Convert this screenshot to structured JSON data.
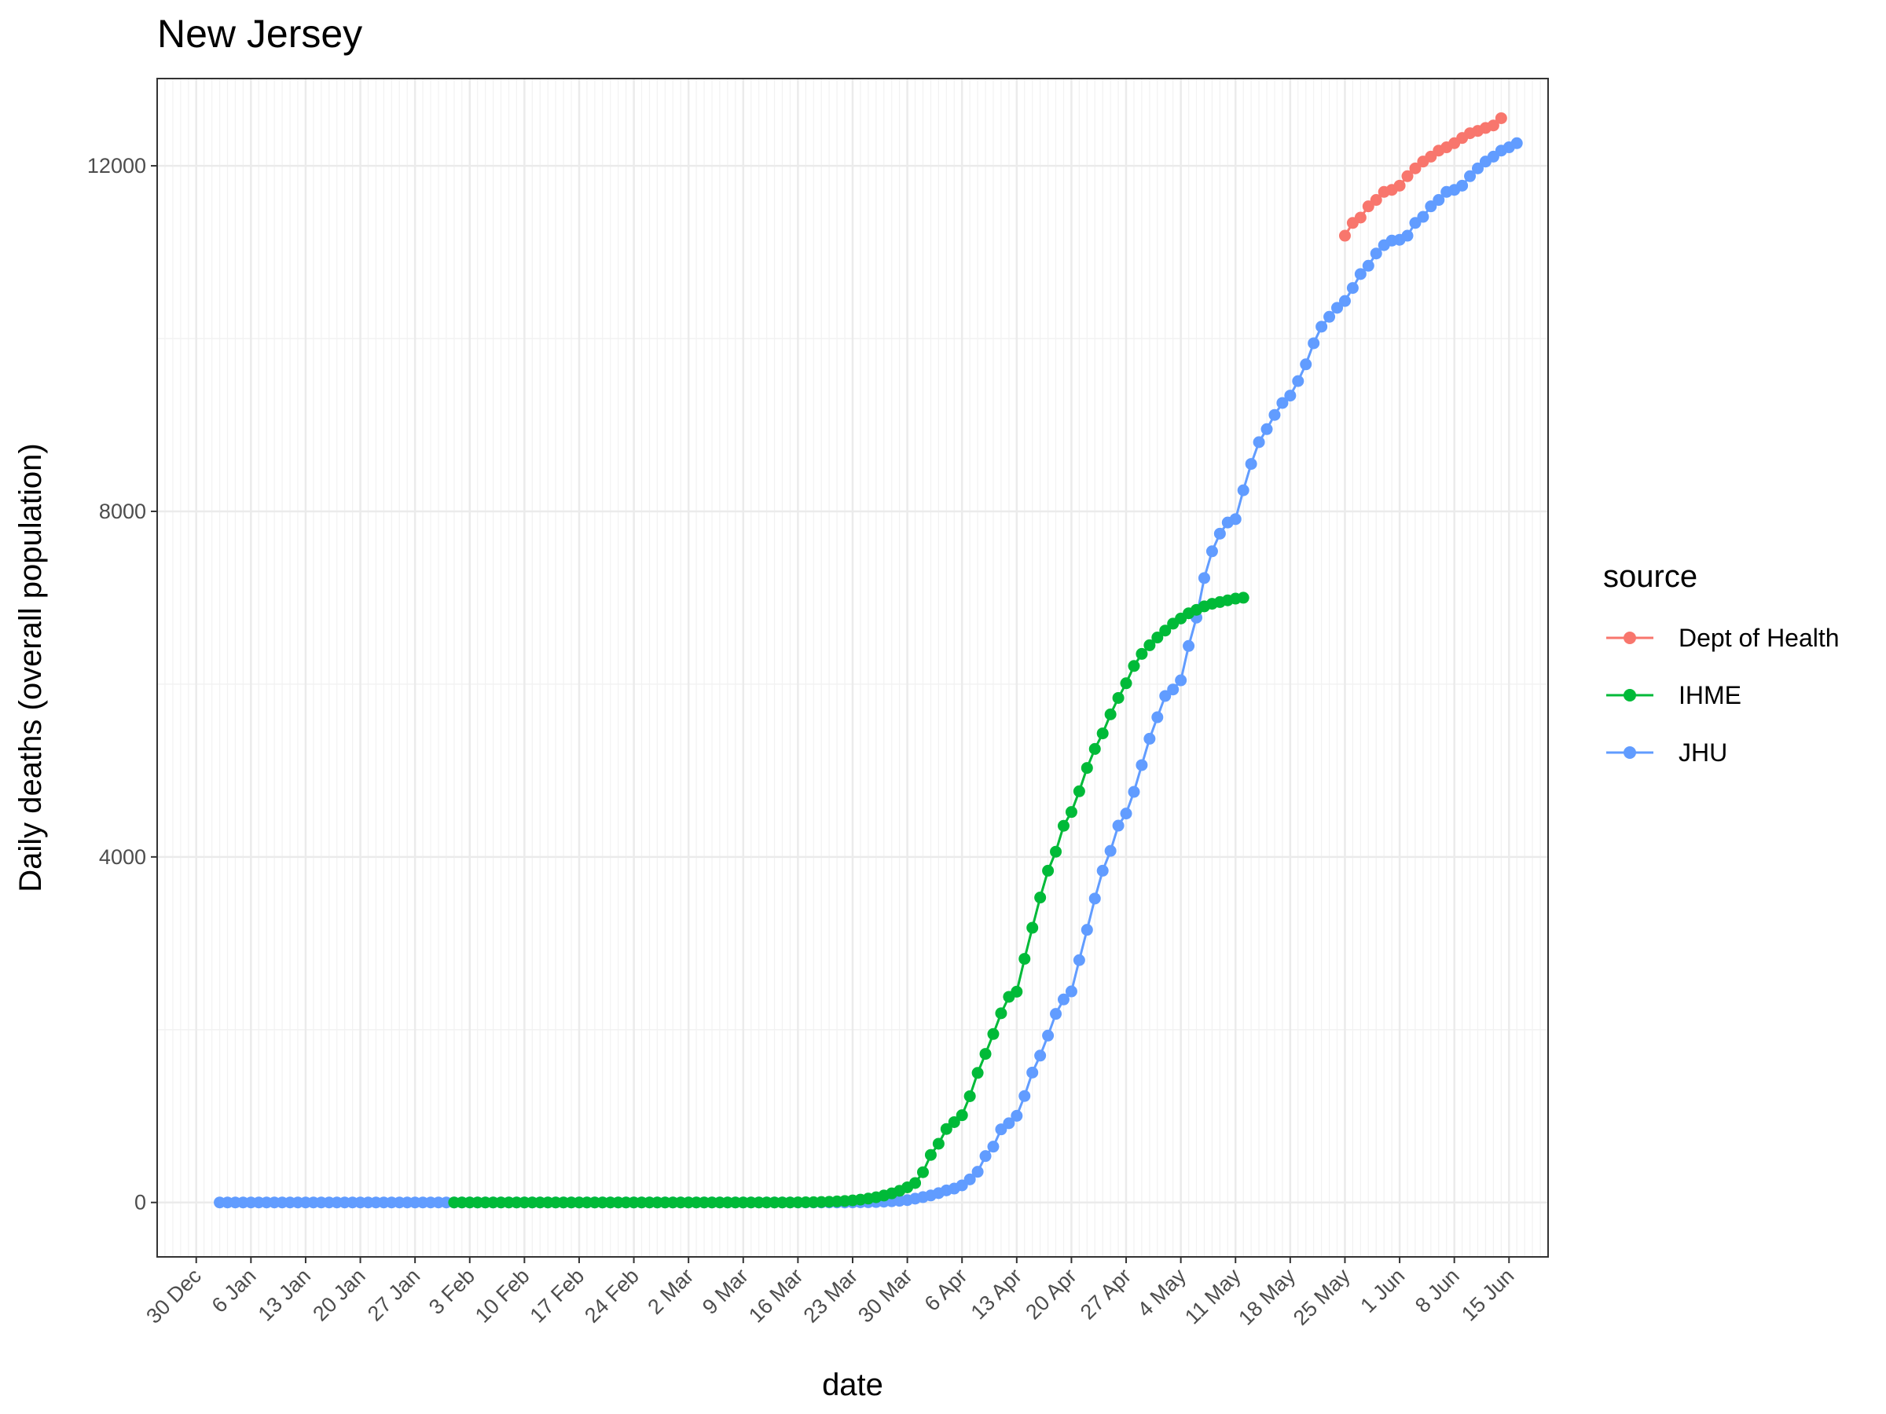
{
  "chart_data": {
    "type": "line",
    "title": "New Jersey",
    "xlabel": "date",
    "ylabel": "Daily deaths (overall population)",
    "x_type": "date",
    "xlim": [
      "2019-12-25",
      "2020-06-20"
    ],
    "ylim": [
      -630,
      13010
    ],
    "y_ticks": [
      0,
      4000,
      8000,
      12000
    ],
    "y_tick_labels": [
      "0",
      "4000",
      "8000",
      "12000"
    ],
    "x_ticks": [
      "2019-12-30",
      "2020-01-06",
      "2020-01-13",
      "2020-01-20",
      "2020-01-27",
      "2020-02-03",
      "2020-02-10",
      "2020-02-17",
      "2020-02-24",
      "2020-03-02",
      "2020-03-09",
      "2020-03-16",
      "2020-03-23",
      "2020-03-30",
      "2020-04-06",
      "2020-04-13",
      "2020-04-20",
      "2020-04-27",
      "2020-05-04",
      "2020-05-11",
      "2020-05-18",
      "2020-05-25",
      "2020-06-01",
      "2020-06-08",
      "2020-06-15"
    ],
    "x_tick_labels": [
      "30 Dec",
      "6 Jan",
      "13 Jan",
      "20 Jan",
      "27 Jan",
      "3 Feb",
      "10 Feb",
      "17 Feb",
      "24 Feb",
      "2 Mar",
      "9 Mar",
      "16 Mar",
      "23 Mar",
      "30 Mar",
      "6 Apr",
      "13 Apr",
      "20 Apr",
      "27 Apr",
      "4 May",
      "11 May",
      "18 May",
      "25 May",
      "1 Jun",
      "8 Jun",
      "15 Jun"
    ],
    "grid": true,
    "legend": {
      "title": "source",
      "position": "right"
    },
    "series": [
      {
        "name": "Dept of Health",
        "color": "#F8766D",
        "start_date": "2020-05-25",
        "values": [
          11191,
          11339,
          11401,
          11531,
          11605,
          11698,
          11721,
          11770,
          11880,
          11970,
          12049,
          12106,
          12176,
          12214,
          12262,
          12322,
          12377,
          12404,
          12438,
          12467,
          12551
        ]
      },
      {
        "name": "IHME",
        "color": "#00BA38",
        "start_date": "2020-02-01",
        "values": [
          0,
          0,
          0,
          0,
          0,
          0,
          0,
          0,
          0,
          0,
          0,
          0,
          0,
          0,
          0,
          0,
          0,
          0,
          0,
          0,
          0,
          0,
          0,
          0,
          0,
          0,
          0,
          0,
          0,
          0,
          0,
          0,
          0,
          0,
          0,
          0,
          0,
          0,
          0,
          0,
          0,
          0,
          0,
          0,
          1,
          2,
          3,
          5,
          8,
          12,
          17,
          24,
          33,
          45,
          60,
          80,
          105,
          135,
          175,
          225,
          350,
          550,
          680,
          850,
          930,
          1010,
          1230,
          1500,
          1720,
          1950,
          2190,
          2380,
          2440,
          2820,
          3180,
          3530,
          3840,
          4060,
          4360,
          4520,
          4760,
          5030,
          5250,
          5430,
          5650,
          5840,
          6010,
          6210,
          6350,
          6450,
          6540,
          6620,
          6700,
          6760,
          6820,
          6860,
          6900,
          6930,
          6950,
          6970,
          6990,
          7000
        ]
      },
      {
        "name": "JHU",
        "color": "#619CFF",
        "start_date": "2020-01-02",
        "values": [
          0,
          0,
          0,
          0,
          0,
          0,
          0,
          0,
          0,
          0,
          0,
          0,
          0,
          0,
          0,
          0,
          0,
          0,
          0,
          0,
          0,
          0,
          0,
          0,
          0,
          0,
          0,
          0,
          0,
          0,
          0,
          0,
          0,
          0,
          0,
          0,
          0,
          0,
          0,
          0,
          0,
          0,
          0,
          0,
          0,
          0,
          0,
          0,
          0,
          0,
          0,
          0,
          0,
          0,
          0,
          0,
          0,
          0,
          0,
          0,
          0,
          0,
          0,
          0,
          0,
          0,
          0,
          0,
          0,
          0,
          0,
          0,
          0,
          0,
          0,
          0,
          0,
          0,
          0,
          0,
          0,
          1,
          2,
          3,
          5,
          9,
          14,
          20,
          27,
          44,
          62,
          81,
          108,
          140,
          161,
          198,
          267,
          355,
          537,
          646,
          846,
          917,
          1003,
          1232,
          1504,
          1700,
          1932,
          2183,
          2350,
          2443,
          2805,
          3156,
          3518,
          3840,
          4070,
          4362,
          4502,
          4753,
          5063,
          5368,
          5617,
          5863,
          5938,
          6044,
          6442,
          6770,
          7228,
          7538,
          7742,
          7871,
          7910,
          8244,
          8549,
          8801,
          8952,
          9116,
          9255,
          9340,
          9508,
          9702,
          9946,
          10138,
          10252,
          10356,
          10435,
          10586,
          10747,
          10843,
          10985,
          11081,
          11134,
          11144,
          11191,
          11339,
          11409,
          11531,
          11605,
          11698,
          11721,
          11770,
          11880,
          11970,
          12049,
          12106,
          12176,
          12214,
          12262
        ]
      }
    ]
  }
}
